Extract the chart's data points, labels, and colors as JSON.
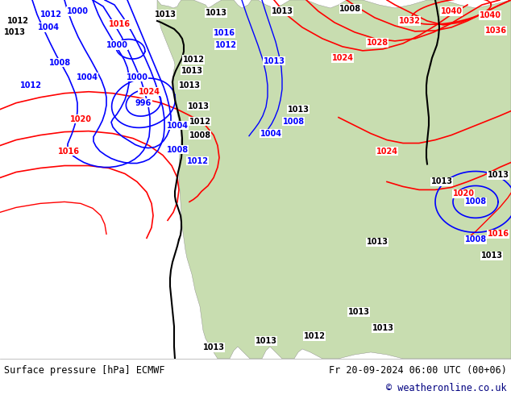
{
  "title_left": "Surface pressure [hPa] ECMWF",
  "title_right": "Fr 20-09-2024 06:00 UTC (00+06)",
  "copyright": "© weatheronline.co.uk",
  "bg_color": "#ffffff",
  "ocean_color": "#d8e8f0",
  "land_color": "#c8ddb0",
  "land_color2": "#b8c8a0",
  "bottom_text_color": "#000000",
  "copyright_color": "#000080",
  "fig_width": 6.34,
  "fig_height": 4.9,
  "dpi": 100
}
